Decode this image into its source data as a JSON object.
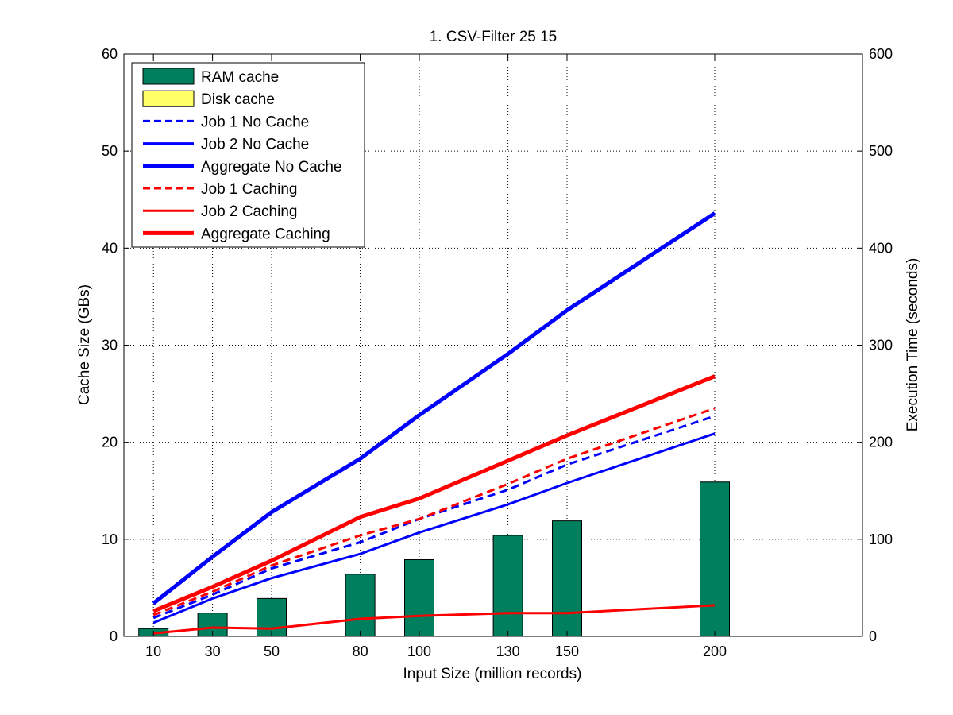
{
  "chart_data": {
    "type": "bar",
    "title": "1. CSV-Filter 25 15",
    "xlabel": "Input Size (million records)",
    "ylabel_left": "Cache Size (GBs)",
    "ylabel_right": "Execution Time (seconds)",
    "x": [
      10,
      30,
      50,
      80,
      100,
      130,
      150,
      200
    ],
    "xlim": [
      0,
      250
    ],
    "ylim_left": [
      0,
      60
    ],
    "ylim_right": [
      0,
      600
    ],
    "yticks_left": [
      0,
      10,
      20,
      30,
      40,
      50,
      60
    ],
    "yticks_right": [
      0,
      100,
      200,
      300,
      400,
      500,
      600
    ],
    "grid": true,
    "legend_position": "top-left",
    "bar_series": [
      {
        "name": "RAM cache",
        "axis": "left",
        "color": "#007f5f",
        "values": [
          0.8,
          2.4,
          3.9,
          6.4,
          7.9,
          10.4,
          11.9,
          15.9
        ]
      },
      {
        "name": "Disk cache",
        "axis": "left",
        "color": "#ffff66",
        "values": [
          0,
          0,
          0,
          0,
          0,
          0,
          0,
          0
        ]
      }
    ],
    "line_series": [
      {
        "name": "Job 1 No Cache",
        "axis": "right",
        "color": "#0000ff",
        "style": "dashed",
        "width": "thin",
        "values": [
          19,
          43,
          70,
          97,
          121,
          151,
          177,
          227
        ]
      },
      {
        "name": "Job 2 No Cache",
        "axis": "right",
        "color": "#0000ff",
        "style": "solid",
        "width": "thin",
        "values": [
          14,
          39,
          60,
          85,
          107,
          136,
          158,
          209
        ]
      },
      {
        "name": "Aggregate No Cache",
        "axis": "right",
        "color": "#0000ff",
        "style": "solid",
        "width": "thick",
        "values": [
          34,
          82,
          128,
          183,
          228,
          291,
          336,
          436
        ]
      },
      {
        "name": "Job 1 Caching",
        "axis": "right",
        "color": "#ff0000",
        "style": "dashed",
        "width": "thin",
        "values": [
          22,
          46,
          73,
          104,
          121,
          157,
          183,
          235
        ]
      },
      {
        "name": "Job 2 Caching",
        "axis": "right",
        "color": "#ff0000",
        "style": "solid",
        "width": "thin",
        "values": [
          3,
          9,
          8,
          18,
          21,
          24,
          24,
          32
        ]
      },
      {
        "name": "Aggregate Caching",
        "axis": "right",
        "color": "#ff0000",
        "style": "solid",
        "width": "thick",
        "values": [
          26,
          51,
          78,
          123,
          142,
          181,
          207,
          268
        ]
      }
    ]
  }
}
